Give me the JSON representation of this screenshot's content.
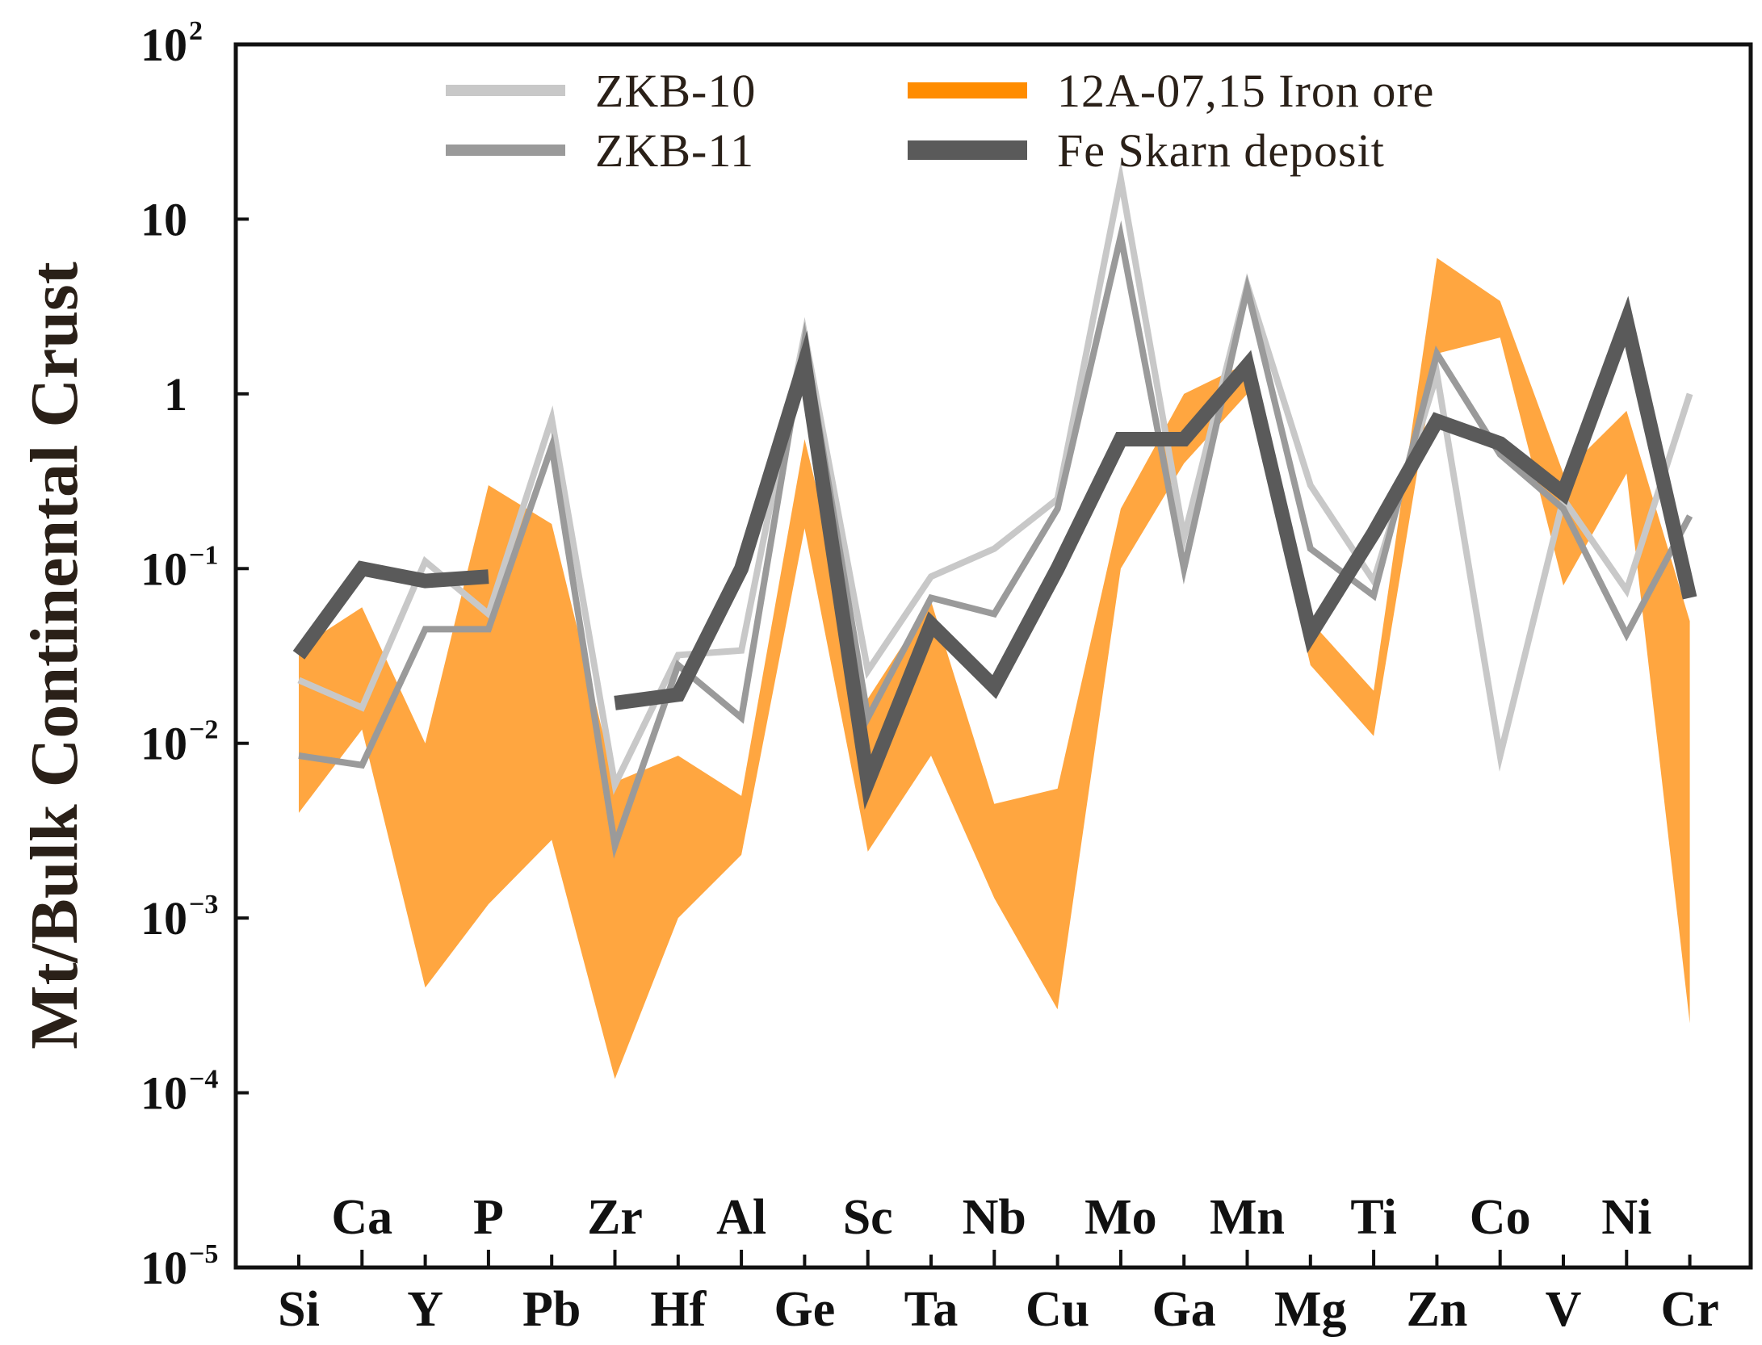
{
  "chart_data": {
    "type": "line",
    "title": "",
    "xlabel": "",
    "ylabel": "Mt/Bulk Continental Crust",
    "yscale": "log",
    "ylim": [
      1e-05,
      100
    ],
    "y_ticks": [
      {
        "value": 1e-05,
        "base": "10",
        "exp": "−5"
      },
      {
        "value": 0.0001,
        "base": "10",
        "exp": "−4"
      },
      {
        "value": 0.001,
        "base": "10",
        "exp": "−3"
      },
      {
        "value": 0.01,
        "base": "10",
        "exp": "−2"
      },
      {
        "value": 0.1,
        "base": "10",
        "exp": "−1"
      },
      {
        "value": 1,
        "base": "1",
        "exp": ""
      },
      {
        "value": 10,
        "base": "10",
        "exp": ""
      },
      {
        "value": 100,
        "base": "10",
        "exp": "2"
      }
    ],
    "categories": [
      "Si",
      "Ca",
      "Y",
      "P",
      "Pb",
      "Zr",
      "Hf",
      "Al",
      "Ge",
      "Sc",
      "Ta",
      "Nb",
      "Cu",
      "Mo",
      "Ga",
      "Mn",
      "Mg",
      "Ti",
      "Zn",
      "Co",
      "V",
      "Ni",
      "Cr"
    ],
    "legend": [
      {
        "label": "ZKB-10",
        "color": "#c8c8c8"
      },
      {
        "label": "ZKB-11",
        "color": "#9a9a9a"
      },
      {
        "label": "12A-07,15 Iron ore",
        "color": "#ff8c00"
      },
      {
        "label": "Fe Skarn deposit",
        "color": "#5a5a5a"
      }
    ],
    "band": {
      "name": "12A-07,15 Iron ore",
      "color": "#ffa640",
      "upper": [
        0.035,
        0.06,
        0.01,
        0.3,
        0.18,
        0.006,
        0.0085,
        0.005,
        0.55,
        0.018,
        0.065,
        0.0045,
        0.0055,
        0.22,
        1.0,
        1.5,
        0.05,
        0.02,
        6.0,
        3.4,
        0.35,
        0.8,
        0.05
      ],
      "lower": [
        0.004,
        0.012,
        0.0004,
        0.0012,
        0.0028,
        0.00012,
        0.001,
        0.0023,
        0.17,
        0.0024,
        0.0085,
        0.0013,
        0.0003,
        0.1,
        0.4,
        1.0,
        0.028,
        0.011,
        1.7,
        2.1,
        0.08,
        0.35,
        0.00025
      ]
    },
    "series": [
      {
        "name": "ZKB-10",
        "color": "#c8c8c8",
        "width": 8,
        "values": [
          0.023,
          0.016,
          0.11,
          0.055,
          0.72,
          0.0058,
          0.032,
          0.034,
          2.2,
          0.026,
          0.09,
          0.13,
          0.25,
          17,
          0.15,
          4.2,
          0.3,
          0.085,
          1.3,
          0.0085,
          0.25,
          0.075,
          1.0
        ]
      },
      {
        "name": "ZKB-11",
        "color": "#9a9a9a",
        "width": 8,
        "values": [
          0.0085,
          0.0075,
          0.045,
          0.045,
          0.5,
          0.0026,
          0.028,
          0.014,
          2.0,
          0.014,
          0.068,
          0.055,
          0.22,
          8.0,
          0.1,
          4.0,
          0.13,
          0.07,
          1.7,
          0.45,
          0.22,
          0.042,
          0.2
        ]
      },
      {
        "name": "Fe Skarn deposit",
        "color": "#5a5a5a",
        "width": 18,
        "segments": [
          [
            0,
            3
          ],
          [
            5,
            22
          ]
        ],
        "values": [
          0.032,
          0.1,
          0.085,
          0.09,
          null,
          0.017,
          0.019,
          0.1,
          1.5,
          0.006,
          0.048,
          0.021,
          0.1,
          0.55,
          0.55,
          1.45,
          0.042,
          0.16,
          0.7,
          0.52,
          0.27,
          2.6,
          0.068
        ]
      }
    ]
  }
}
